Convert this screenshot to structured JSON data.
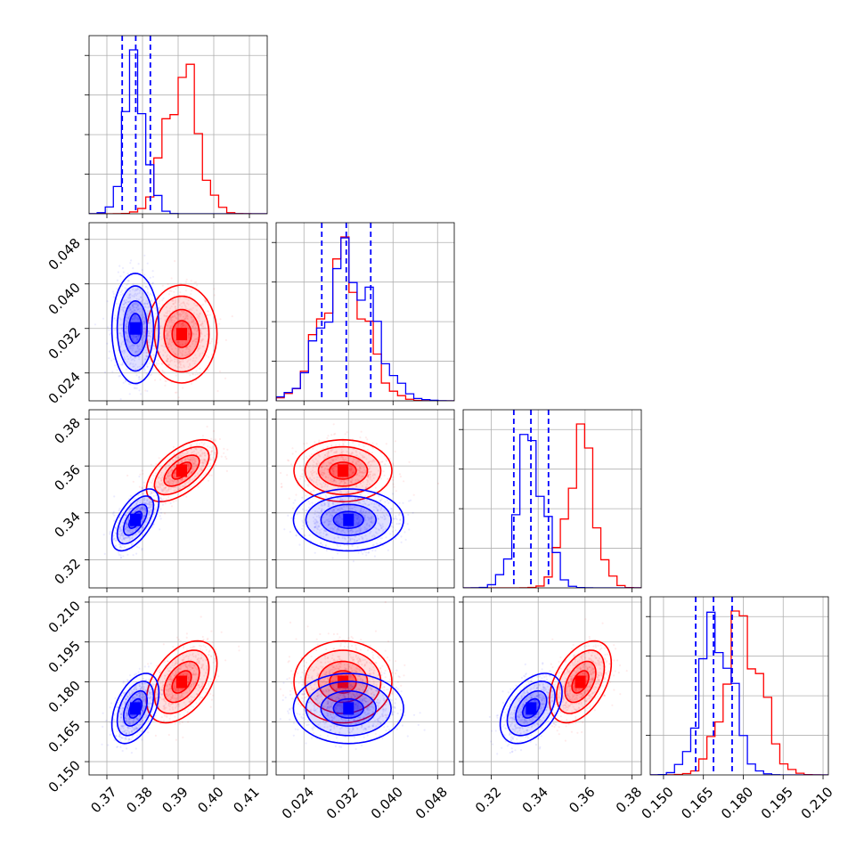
{
  "colors": {
    "series_a": "#ff0000",
    "series_b": "#0000ff",
    "grid": "#b0b0b0"
  },
  "chart_data": {
    "type": "corner",
    "grid": true,
    "parameters": [
      {
        "range": [
          0.365,
          0.415
        ],
        "ticks": [
          0.37,
          0.38,
          0.39,
          0.4,
          0.41
        ],
        "tick_labels": [
          "0.37",
          "0.38",
          "0.39",
          "0.40",
          "0.41"
        ]
      },
      {
        "range": [
          0.019,
          0.051
        ],
        "ticks": [
          0.024,
          0.032,
          0.04,
          0.048
        ],
        "tick_labels": [
          "0.024",
          "0.032",
          "0.040",
          "0.048"
        ]
      },
      {
        "range": [
          0.308,
          0.384
        ],
        "ticks": [
          0.32,
          0.34,
          0.36,
          0.38
        ],
        "tick_labels": [
          "0.32",
          "0.34",
          "0.36",
          "0.38"
        ]
      },
      {
        "range": [
          0.145,
          0.212
        ],
        "ticks": [
          0.15,
          0.165,
          0.18,
          0.195,
          0.21
        ],
        "tick_labels": [
          "0.150",
          "0.165",
          "0.180",
          "0.195",
          "0.210"
        ]
      }
    ],
    "series": [
      {
        "color": "#ff0000",
        "mean": [
          0.391,
          0.031,
          0.358,
          0.18
        ],
        "std": [
          0.0045,
          0.004,
          0.006,
          0.007
        ],
        "quantiles": null
      },
      {
        "color": "#0000ff",
        "mean": [
          0.378,
          0.032,
          0.337,
          0.17
        ],
        "std": [
          0.003,
          0.0045,
          0.006,
          0.006
        ],
        "quantiles": [
          [
            0.3743,
            0.3781,
            0.3822
          ],
          [
            0.0272,
            0.0316,
            0.036
          ],
          [
            0.3296,
            0.3369,
            0.3444
          ],
          [
            0.1621,
            0.1688,
            0.1758
          ]
        ]
      }
    ],
    "correlations": [
      {
        "pair": [
          0,
          2
        ],
        "series": "both",
        "rho": 0.6
      },
      {
        "pair": [
          0,
          3
        ],
        "series": "both",
        "rho": 0.45
      },
      {
        "pair": [
          2,
          3
        ],
        "series": "both",
        "rho": 0.45
      }
    ]
  }
}
